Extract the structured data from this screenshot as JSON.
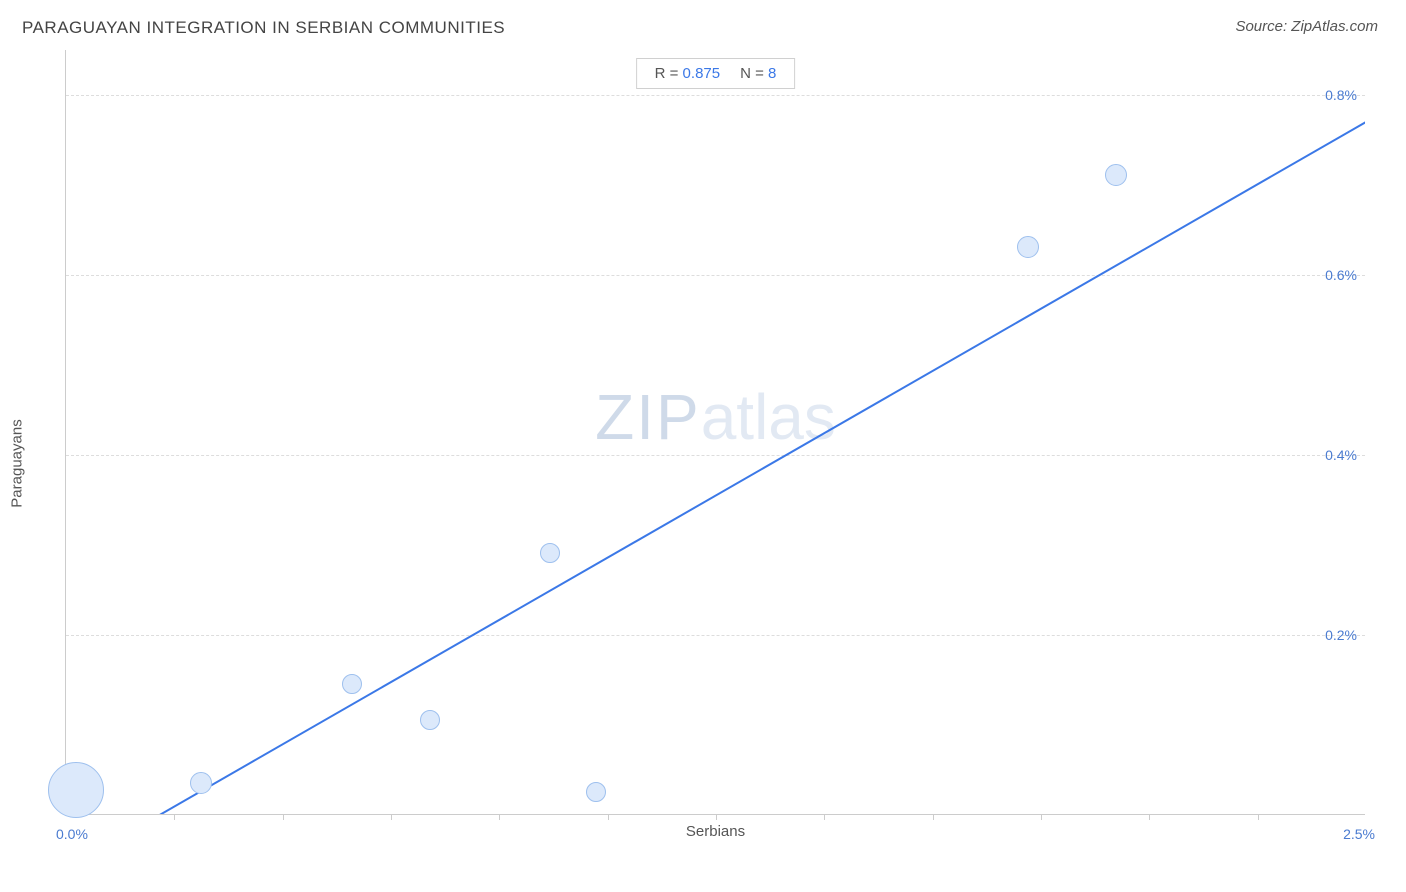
{
  "title": "PARAGUAYAN INTEGRATION IN SERBIAN COMMUNITIES",
  "source": "Source: ZipAtlas.com",
  "watermark": {
    "part1": "ZIP",
    "part2": "atlas"
  },
  "stats": {
    "r_label": "R = ",
    "r_value": "0.875",
    "n_label": "N = ",
    "n_value": "8"
  },
  "chart": {
    "type": "scatter",
    "x_axis": {
      "label": "Serbians",
      "min": 0.0,
      "max": 2.5,
      "min_label": "0.0%",
      "max_label": "2.5%",
      "tick_count": 12
    },
    "y_axis": {
      "label": "Paraguayans",
      "min": 0.0,
      "max": 0.85,
      "ticks": [
        0.2,
        0.4,
        0.6,
        0.8
      ],
      "tick_labels": [
        "0.2%",
        "0.4%",
        "0.6%",
        "0.8%"
      ]
    },
    "bubbles": [
      {
        "x": 0.02,
        "y": 0.027,
        "r": 28
      },
      {
        "x": 0.26,
        "y": 0.035,
        "r": 11
      },
      {
        "x": 0.55,
        "y": 0.145,
        "r": 10
      },
      {
        "x": 0.7,
        "y": 0.105,
        "r": 10
      },
      {
        "x": 0.93,
        "y": 0.29,
        "r": 10
      },
      {
        "x": 1.02,
        "y": 0.025,
        "r": 10
      },
      {
        "x": 1.85,
        "y": 0.63,
        "r": 11
      },
      {
        "x": 2.02,
        "y": 0.71,
        "r": 11
      }
    ],
    "trend_line": {
      "x1": 0.18,
      "y1": 0.0,
      "x2": 2.5,
      "y2": 0.77,
      "color": "#3b78e7",
      "width": 2
    },
    "bubble_fill": "#dce9fb",
    "bubble_stroke": "#9ec0ee",
    "background_color": "#ffffff",
    "grid_color": "#dddddd",
    "axis_color": "#cccccc",
    "tick_label_color": "#4a7bd0",
    "axis_label_color": "#555555",
    "title_color": "#444444"
  }
}
